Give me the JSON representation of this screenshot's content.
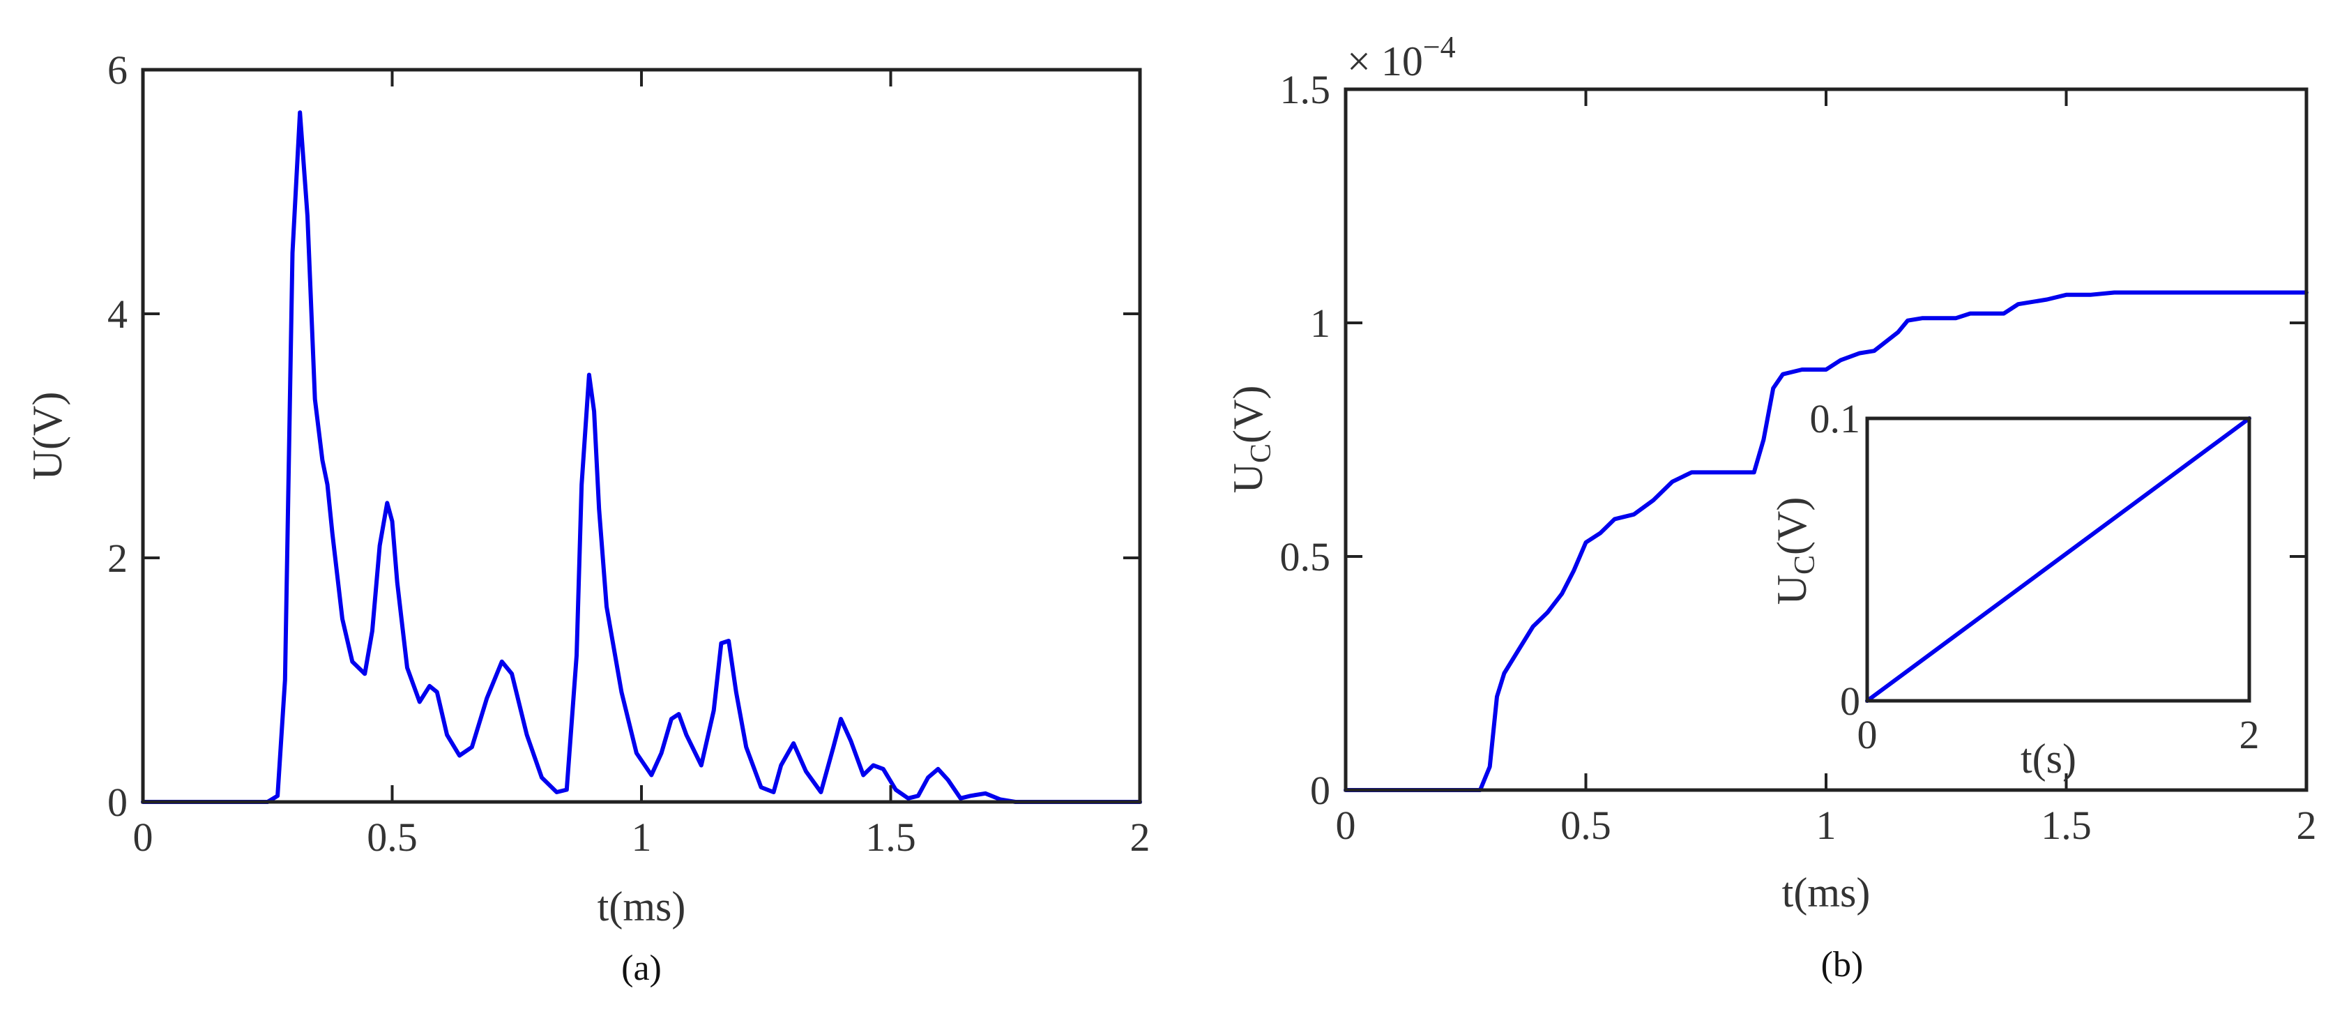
{
  "colors": {
    "series": "#0000ee",
    "axes": "#222222",
    "text": "#333333"
  },
  "captions": {
    "a": "(a)",
    "b": "(b)"
  },
  "chart_data": [
    {
      "id": "a",
      "type": "line",
      "xlabel": "t(ms)",
      "ylabel": "U(V)",
      "xlim": [
        0,
        2
      ],
      "ylim": [
        0,
        6
      ],
      "xticks": [
        0,
        0.5,
        1,
        1.5,
        2
      ],
      "xtick_labels": [
        "0",
        "0.5",
        "1",
        "1.5",
        "2"
      ],
      "yticks": [
        0,
        2,
        4,
        6
      ],
      "ytick_labels": [
        "0",
        "2",
        "4",
        "6"
      ],
      "grid": false,
      "series": [
        {
          "x": [
            0,
            0.25,
            0.27,
            0.285,
            0.3,
            0.315,
            0.33,
            0.345,
            0.36,
            0.37,
            0.38,
            0.4,
            0.42,
            0.445,
            0.46,
            0.475,
            0.49,
            0.5,
            0.51,
            0.53,
            0.555,
            0.575,
            0.59,
            0.61,
            0.635,
            0.66,
            0.69,
            0.72,
            0.74,
            0.77,
            0.8,
            0.83,
            0.85,
            0.87,
            0.88,
            0.895,
            0.905,
            0.915,
            0.93,
            0.96,
            0.99,
            1.02,
            1.04,
            1.06,
            1.075,
            1.09,
            1.12,
            1.145,
            1.16,
            1.175,
            1.19,
            1.21,
            1.24,
            1.265,
            1.28,
            1.305,
            1.33,
            1.36,
            1.385,
            1.4,
            1.42,
            1.445,
            1.465,
            1.485,
            1.51,
            1.535,
            1.555,
            1.575,
            1.595,
            1.615,
            1.64,
            1.66,
            1.69,
            1.72,
            1.75,
            1.8,
            2.0
          ],
          "y": [
            0,
            0,
            0.05,
            1.0,
            4.5,
            5.65,
            4.8,
            3.3,
            2.8,
            2.6,
            2.2,
            1.5,
            1.15,
            1.05,
            1.4,
            2.1,
            2.45,
            2.3,
            1.8,
            1.1,
            0.82,
            0.95,
            0.9,
            0.55,
            0.38,
            0.45,
            0.85,
            1.15,
            1.05,
            0.55,
            0.2,
            0.08,
            0.1,
            1.2,
            2.6,
            3.5,
            3.2,
            2.4,
            1.6,
            0.9,
            0.4,
            0.22,
            0.4,
            0.68,
            0.72,
            0.55,
            0.3,
            0.75,
            1.3,
            1.32,
            0.9,
            0.45,
            0.12,
            0.08,
            0.3,
            0.48,
            0.25,
            0.08,
            0.45,
            0.68,
            0.5,
            0.22,
            0.3,
            0.27,
            0.1,
            0.03,
            0.05,
            0.2,
            0.27,
            0.18,
            0.03,
            0.05,
            0.07,
            0.02,
            0.0,
            0.0,
            0.0
          ]
        }
      ]
    },
    {
      "id": "b",
      "type": "line",
      "xlabel": "t(ms)",
      "ylabel": "U",
      "ylabel_sub": "C",
      "ylabel_suffix": "(V)",
      "y_multiplier_base": "× 10",
      "y_multiplier_exponent": "−4",
      "xlim": [
        0,
        2
      ],
      "ylim": [
        0,
        1.5
      ],
      "xticks": [
        0,
        0.5,
        1,
        1.5,
        2
      ],
      "xtick_labels": [
        "0",
        "0.5",
        "1",
        "1.5",
        "2"
      ],
      "yticks": [
        0,
        0.5,
        1,
        1.5
      ],
      "ytick_labels": [
        "0",
        "0.5",
        "1",
        "1.5"
      ],
      "grid": false,
      "series": [
        {
          "x": [
            0,
            0.28,
            0.3,
            0.315,
            0.33,
            0.36,
            0.39,
            0.42,
            0.45,
            0.475,
            0.5,
            0.53,
            0.56,
            0.6,
            0.64,
            0.68,
            0.72,
            0.76,
            0.8,
            0.85,
            0.87,
            0.89,
            0.91,
            0.95,
            1.0,
            1.03,
            1.07,
            1.1,
            1.15,
            1.17,
            1.2,
            1.27,
            1.3,
            1.37,
            1.4,
            1.46,
            1.5,
            1.55,
            1.6,
            2.0
          ],
          "y": [
            0,
            0,
            0.05,
            0.2,
            0.25,
            0.3,
            0.35,
            0.38,
            0.42,
            0.47,
            0.53,
            0.55,
            0.58,
            0.59,
            0.62,
            0.66,
            0.68,
            0.68,
            0.68,
            0.68,
            0.75,
            0.86,
            0.89,
            0.9,
            0.9,
            0.92,
            0.935,
            0.94,
            0.98,
            1.005,
            1.01,
            1.01,
            1.02,
            1.02,
            1.04,
            1.05,
            1.06,
            1.06,
            1.065,
            1.065
          ]
        }
      ]
    },
    {
      "id": "b-inset",
      "type": "line",
      "xlabel": "t(s)",
      "ylabel": "U",
      "ylabel_sub": "C",
      "ylabel_suffix": "(V)",
      "xlim": [
        0,
        2
      ],
      "ylim": [
        0,
        0.1
      ],
      "xticks": [
        0,
        2
      ],
      "xtick_labels": [
        "0",
        "2"
      ],
      "yticks": [
        0,
        0.1
      ],
      "ytick_labels": [
        "0",
        "0.1"
      ],
      "grid": false,
      "series": [
        {
          "x": [
            0,
            2
          ],
          "y": [
            0,
            0.1
          ]
        }
      ]
    }
  ]
}
